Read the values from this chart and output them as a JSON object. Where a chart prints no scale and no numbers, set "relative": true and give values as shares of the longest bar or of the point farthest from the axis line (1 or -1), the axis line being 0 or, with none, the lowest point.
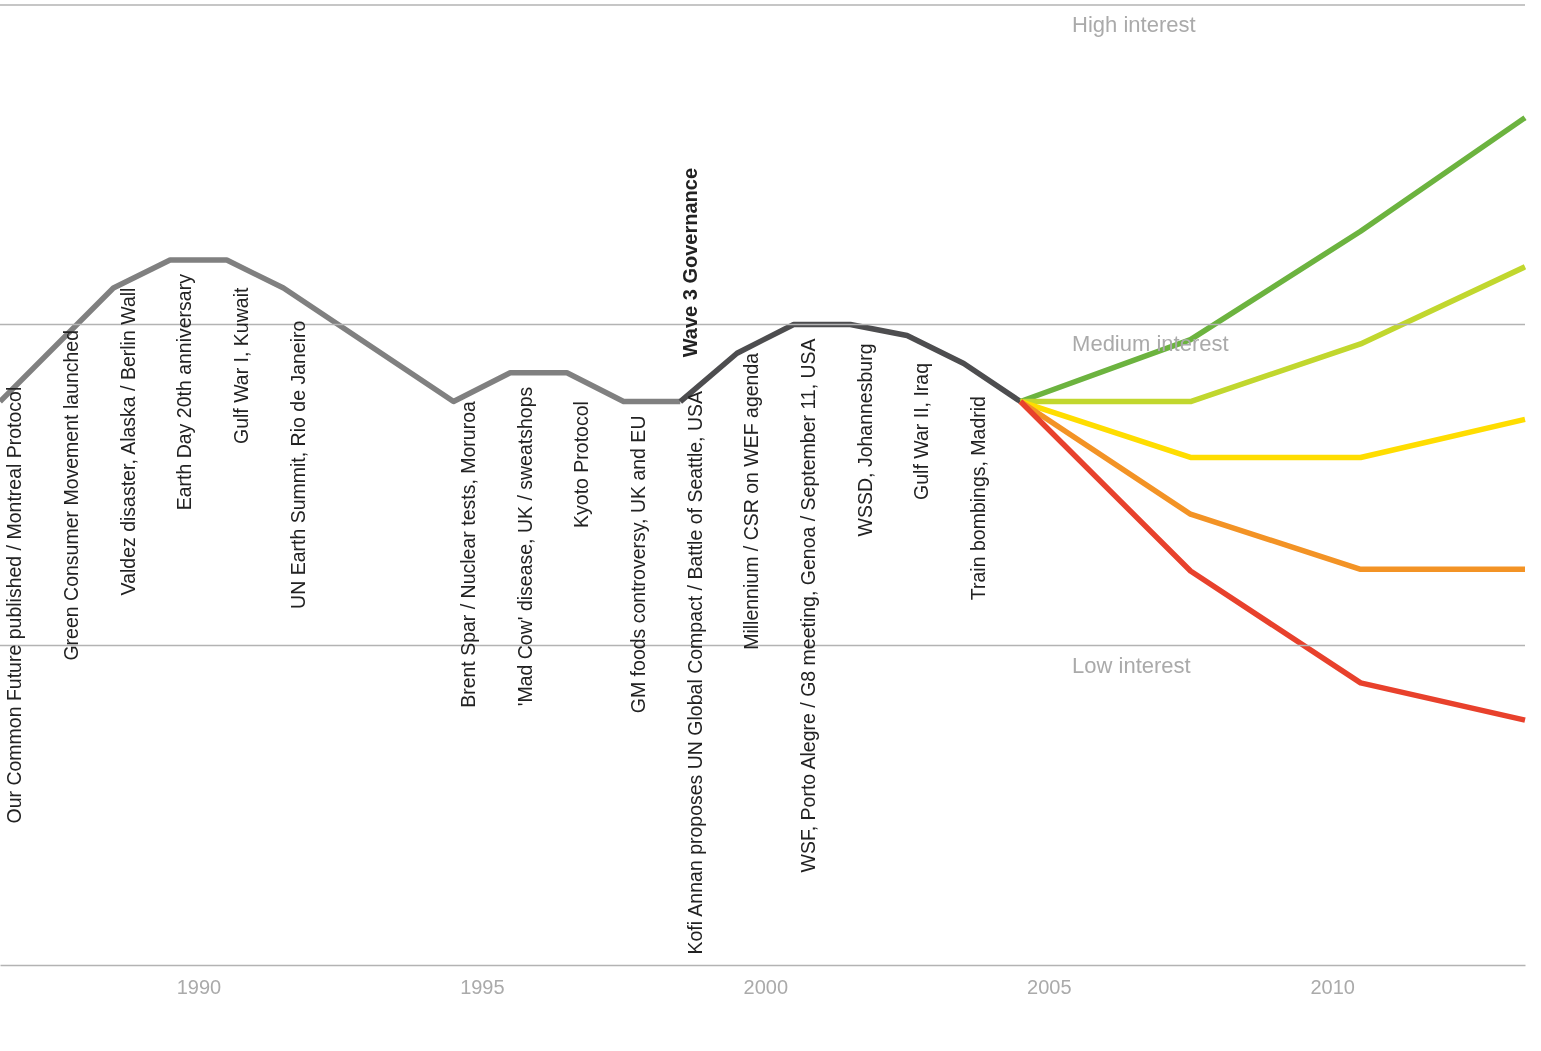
{
  "chart_data": {
    "type": "line",
    "relative": true,
    "xlim": [
      1986.5,
      2013.4
    ],
    "xticks": [
      1990,
      1995,
      2000,
      2005,
      2010
    ],
    "grid": false,
    "series": [
      {
        "color": "#808080",
        "x": [
          1986.5,
          1988.5,
          1989.5,
          1990.5,
          1991.5,
          1994.5,
          1995.5,
          1996.5,
          1997.5,
          1998.5
        ],
        "values": [
          0.665,
          0.799,
          0.832,
          0.832,
          0.799,
          0.665,
          0.699,
          0.699,
          0.665,
          0.665
        ]
      },
      {
        "color": "#4d4d4f",
        "x": [
          1998.5,
          1999.5,
          2000.5,
          2001.5,
          2002.5,
          2003.5,
          2004.5
        ],
        "values": [
          0.665,
          0.722,
          0.756,
          0.756,
          0.743,
          0.71,
          0.665
        ]
      },
      {
        "color": "#6cb33f",
        "x": [
          2004.5,
          2007.5,
          2010.5,
          2013.4
        ],
        "values": [
          0.665,
          0.738,
          0.866,
          1.0
        ]
      },
      {
        "color": "#c1d72e",
        "x": [
          2004.5,
          2007.5,
          2010.5,
          2013.4
        ],
        "values": [
          0.665,
          0.665,
          0.733,
          0.824
        ]
      },
      {
        "color": "#ffdd00",
        "x": [
          2004.5,
          2007.5,
          2010.5,
          2013.4
        ],
        "values": [
          0.665,
          0.599,
          0.599,
          0.644
        ]
      },
      {
        "color": "#f39325",
        "x": [
          2004.5,
          2007.5,
          2010.5,
          2013.4
        ],
        "values": [
          0.665,
          0.532,
          0.467,
          0.467
        ]
      },
      {
        "color": "#e8412c",
        "x": [
          2004.5,
          2007.5,
          2010.5,
          2013.4
        ],
        "values": [
          0.665,
          0.465,
          0.333,
          0.289
        ]
      }
    ],
    "ref_lines": [
      {
        "axis": "y",
        "value": 1.133,
        "label": "High interest",
        "color": "#b3b3b3"
      },
      {
        "axis": "y",
        "value": 0.756,
        "label": "Medium interest",
        "color": "#b3b3b3"
      },
      {
        "axis": "y",
        "value": 0.377,
        "label": "Low interest",
        "color": "#b3b3b3"
      }
    ],
    "annotations": [
      {
        "text": "Our Common Future published / Montreal Protocol",
        "x": 1987,
        "y": 0.699
      },
      {
        "text": "Green Consumer Movement launched",
        "x": 1988,
        "y": 0.766
      },
      {
        "text": "Valdez disaster, Alaska / Berlin Wall",
        "x": 1989,
        "y": 0.816
      },
      {
        "text": "Earth Day 20th anniversary",
        "x": 1990,
        "y": 0.832
      },
      {
        "text": "Gulf War I, Kuwait",
        "x": 1991,
        "y": 0.816
      },
      {
        "text": "UN Earth Summit, Rio de Janeiro",
        "x": 1992,
        "y": 0.777
      },
      {
        "text": "Brent Spar / Nuclear tests, Moruroa",
        "x": 1995,
        "y": 0.682
      },
      {
        "text": "'Mad Cow' disease, UK / sweatshops",
        "x": 1996,
        "y": 0.699
      },
      {
        "text": "Kyoto Protocol",
        "x": 1997,
        "y": 0.682
      },
      {
        "text": "GM foods controversy, UK and EU",
        "x": 1998,
        "y": 0.665
      },
      {
        "text": "Kofi Annan proposes UN Global Compact / Battle of Seattle, USA",
        "x": 1999,
        "y": 0.694
      },
      {
        "text": "Millennium / CSR on WEF agenda",
        "x": 2000,
        "y": 0.739
      },
      {
        "text": "WSF, Porto Alegre / G8 meeting, Genoa / September 11, USA",
        "x": 2001,
        "y": 0.756
      },
      {
        "text": "WSSD, Johannesburg",
        "x": 2002,
        "y": 0.75
      },
      {
        "text": "Gulf War II, Iraq",
        "x": 2003,
        "y": 0.727
      },
      {
        "text": "Train bombings, Madrid",
        "x": 2004,
        "y": 0.688
      },
      "Wave 3 Governance"
    ]
  }
}
